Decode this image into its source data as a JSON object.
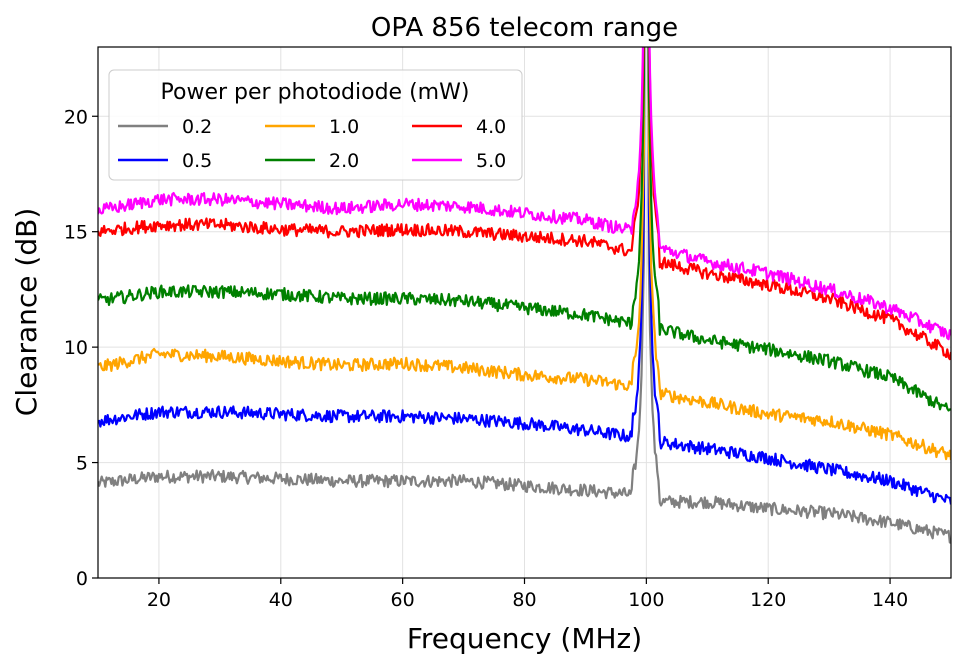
{
  "chart_data": {
    "type": "line",
    "title": "OPA 856 telecom range",
    "xlabel": "Frequency (MHz)",
    "ylabel": "Clearance (dB)",
    "xlim": [
      10,
      150
    ],
    "ylim": [
      0,
      23
    ],
    "xticks": [
      20,
      40,
      60,
      80,
      100,
      120,
      140
    ],
    "yticks": [
      0,
      5,
      10,
      15,
      20
    ],
    "grid": true,
    "legend": {
      "title": "Power per photodiode (mW)",
      "position": "top-left",
      "columns": 3
    },
    "spike": {
      "center": 100,
      "note": "peaks exceed axis top"
    },
    "series": [
      {
        "name": "0.2",
        "color": "#808080",
        "x": [
          10,
          20,
          30,
          40,
          50,
          60,
          70,
          80,
          90,
          98,
          102,
          110,
          120,
          130,
          140,
          150
        ],
        "y": [
          4.1,
          4.4,
          4.4,
          4.3,
          4.2,
          4.2,
          4.2,
          4.0,
          3.8,
          3.6,
          3.3,
          3.3,
          3.0,
          2.8,
          2.4,
          1.8
        ]
      },
      {
        "name": "0.5",
        "color": "#0000ff",
        "x": [
          10,
          20,
          30,
          40,
          50,
          60,
          70,
          80,
          90,
          98,
          102,
          110,
          120,
          130,
          140,
          150
        ],
        "y": [
          6.8,
          7.2,
          7.2,
          7.1,
          7.0,
          7.0,
          6.9,
          6.7,
          6.4,
          6.1,
          5.9,
          5.6,
          5.2,
          4.7,
          4.2,
          3.3
        ]
      },
      {
        "name": "1.0",
        "color": "#ffa500",
        "x": [
          10,
          20,
          30,
          40,
          50,
          60,
          70,
          80,
          90,
          98,
          102,
          110,
          120,
          130,
          140,
          150
        ],
        "y": [
          9.1,
          9.7,
          9.6,
          9.4,
          9.2,
          9.3,
          9.1,
          8.8,
          8.6,
          8.3,
          8.0,
          7.6,
          7.1,
          6.8,
          6.2,
          5.3
        ]
      },
      {
        "name": "2.0",
        "color": "#008000",
        "x": [
          10,
          20,
          30,
          40,
          50,
          60,
          70,
          80,
          90,
          98,
          102,
          110,
          120,
          130,
          140,
          150
        ],
        "y": [
          12.0,
          12.4,
          12.4,
          12.3,
          12.1,
          12.1,
          12.0,
          11.7,
          11.4,
          11.0,
          10.8,
          10.3,
          9.9,
          9.4,
          8.7,
          7.2
        ]
      },
      {
        "name": "4.0",
        "color": "#ff0000",
        "x": [
          10,
          20,
          30,
          40,
          50,
          60,
          70,
          80,
          90,
          98,
          102,
          110,
          120,
          130,
          140,
          150
        ],
        "y": [
          15.0,
          15.3,
          15.3,
          15.1,
          15.0,
          15.1,
          15.0,
          14.8,
          14.6,
          14.1,
          13.7,
          13.2,
          12.7,
          12.1,
          11.2,
          9.7
        ]
      },
      {
        "name": "5.0",
        "color": "#ff00ff",
        "x": [
          10,
          20,
          30,
          40,
          50,
          60,
          70,
          80,
          90,
          98,
          102,
          110,
          120,
          130,
          140,
          150
        ],
        "y": [
          15.9,
          16.4,
          16.4,
          16.2,
          16.0,
          16.2,
          16.1,
          15.8,
          15.5,
          15.0,
          14.3,
          13.7,
          13.2,
          12.5,
          11.7,
          10.5
        ]
      }
    ]
  }
}
